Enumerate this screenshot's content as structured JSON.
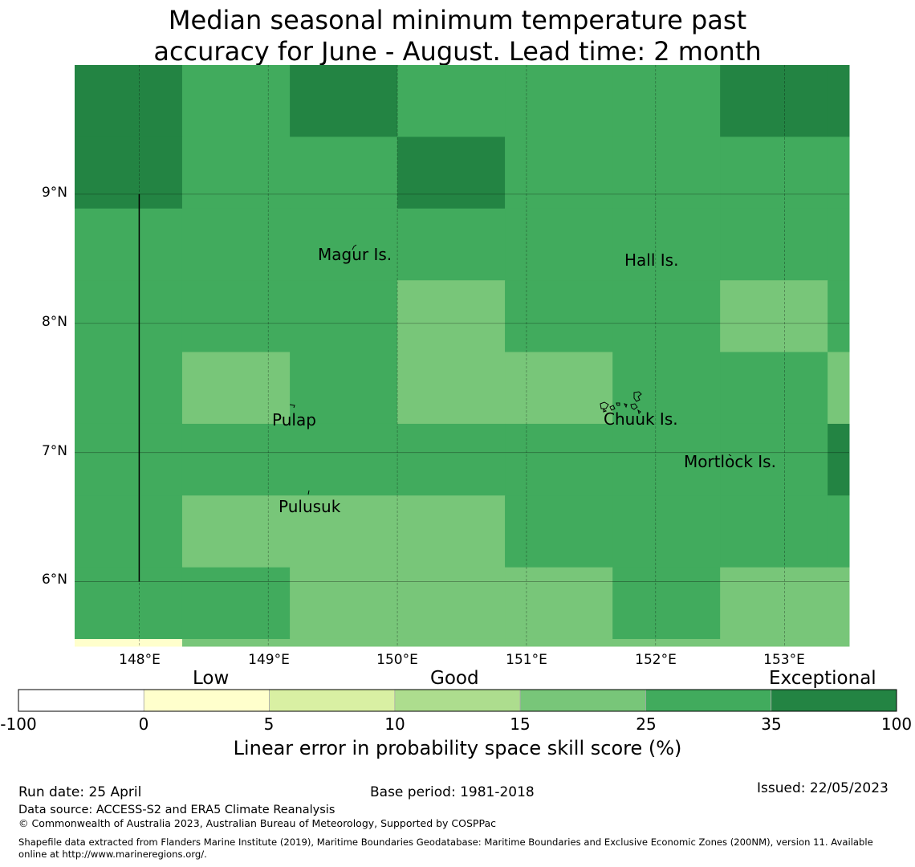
{
  "title": {
    "line1": "Median seasonal minimum temperature past",
    "line2": "accuracy for June - August. Lead time: 2 month"
  },
  "map": {
    "lon_range": [
      147.5,
      153.5
    ],
    "lat_range": [
      5.5,
      10.0
    ],
    "grid_lons": [
      147.5,
      148.333,
      149.167,
      150.0,
      150.833,
      151.667,
      152.5,
      153.333,
      153.5
    ],
    "grid_lats": [
      10.0,
      9.444,
      8.889,
      8.333,
      7.778,
      7.222,
      6.667,
      6.111,
      5.556,
      5.5
    ],
    "skill_classes": [
      [
        "exceptional",
        "very_good",
        "exceptional",
        "very_good",
        "very_good",
        "very_good",
        "exceptional",
        "exceptional"
      ],
      [
        "exceptional",
        "very_good",
        "very_good",
        "exceptional",
        "very_good",
        "very_good",
        "very_good",
        "very_good"
      ],
      [
        "very_good",
        "very_good",
        "very_good",
        "very_good",
        "very_good",
        "very_good",
        "very_good",
        "very_good"
      ],
      [
        "very_good",
        "very_good",
        "very_good",
        "good",
        "very_good",
        "very_good",
        "good",
        "very_good"
      ],
      [
        "very_good",
        "good",
        "very_good",
        "good",
        "good",
        "very_good",
        "very_good",
        "good"
      ],
      [
        "very_good",
        "very_good",
        "very_good",
        "very_good",
        "very_good",
        "very_good",
        "very_good",
        "exceptional"
      ],
      [
        "very_good",
        "good",
        "good",
        "good",
        "very_good",
        "very_good",
        "very_good",
        "very_good"
      ],
      [
        "very_good",
        "very_good",
        "good",
        "good",
        "good",
        "very_good",
        "good",
        "good"
      ],
      [
        "low",
        "good",
        "good",
        "good",
        "good",
        "good",
        "good",
        "good"
      ]
    ],
    "lat_ticks": [
      {
        "value": 9,
        "label": "9°N"
      },
      {
        "value": 8,
        "label": "8°N"
      },
      {
        "value": 7,
        "label": "7°N"
      },
      {
        "value": 6,
        "label": "6°N"
      }
    ],
    "lon_ticks": [
      {
        "value": 148,
        "label": "148°E"
      },
      {
        "value": 149,
        "label": "149°E"
      },
      {
        "value": 150,
        "label": "150°E"
      },
      {
        "value": 151,
        "label": "151°E"
      },
      {
        "value": 152,
        "label": "152°E"
      },
      {
        "value": 153,
        "label": "153°E"
      }
    ],
    "boundary_line": {
      "lon": 148.0,
      "lat_from": 6.0,
      "lat_to": 9.0
    },
    "places": [
      {
        "name": "Magur Is.",
        "lon": 149.68,
        "lat": 8.56
      },
      {
        "name": "Hall Is.",
        "lon": 151.98,
        "lat": 8.52
      },
      {
        "name": "Pulap",
        "lon": 149.42,
        "lat": 7.37
      },
      {
        "name": "Chuuk Is.",
        "lon": 151.85,
        "lat": 7.42
      },
      {
        "name": "Mortlock Is.",
        "lon": 152.58,
        "lat": 6.95
      },
      {
        "name": "Pulusuk",
        "lon": 149.31,
        "lat": 6.69
      }
    ]
  },
  "colorbar": {
    "categories": [
      "Low",
      "Good",
      "Exceptional"
    ],
    "tick_labels": [
      "-100",
      "0",
      "5",
      "10",
      "15",
      "25",
      "35",
      "100"
    ],
    "colors": [
      "#ffffff",
      "#ffffcc",
      "#d9f0a3",
      "#addd8e",
      "#78c679",
      "#41ab5d",
      "#238443"
    ],
    "label": "Linear error in probability space skill score (%)"
  },
  "class_colors": {
    "low": "#ffffcc",
    "good": "#78c679",
    "very_good": "#41ab5d",
    "exceptional": "#238443"
  },
  "footer": {
    "run_date": "Run date: 25 April",
    "base_period": "Base period: 1981-2018",
    "issued": "Issued: 22/05/2023",
    "data_source": "Data source: ACCESS-S2 and ERA5 Climate Reanalysis",
    "copyright": "© Commonwealth of Australia 2023, Australian Bureau of Meteorology, Supported by COSPPac",
    "shapefile_line1": "Shapefile data extracted from Flanders Marine Institute (2019), Maritime Boundaries Geodatabase: Maritime Boundaries and Exclusive Economic Zones (200NM), version 11. Available",
    "shapefile_line2": "online at http://www.marineregions.org/."
  }
}
